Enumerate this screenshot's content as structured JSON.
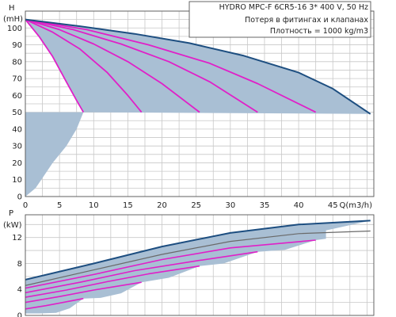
{
  "chart_data": [
    {
      "type": "line",
      "title": "HYDRO MPC-F 6CR5-16   3* 400 V, 50 Hz",
      "annotations": [
        "Потеря в фитингах и клапанах",
        "Плотность = 1000 kg/m3"
      ],
      "ylabel": "H",
      "yunit": "(mH)",
      "xlabel": "Q(m3/h)",
      "xlim": [
        0,
        51
      ],
      "ylim": [
        0,
        110
      ],
      "xticks": [
        0,
        5,
        10,
        15,
        20,
        25,
        30,
        35,
        40,
        45
      ],
      "yticks": [
        0,
        10,
        20,
        30,
        40,
        50,
        60,
        70,
        80,
        90,
        100
      ],
      "grid": true,
      "colors": {
        "envelope": "#1d4e80",
        "curves": "#e020c8",
        "region": "#a9bfd4"
      },
      "series": [
        {
          "x": [
            0,
            2,
            4,
            6,
            7.5,
            8.5
          ],
          "y": [
            105,
            95,
            83,
            68,
            57,
            50
          ]
        },
        {
          "x": [
            0,
            4,
            8,
            12,
            15,
            17
          ],
          "y": [
            105,
            97.5,
            87.5,
            73.5,
            60,
            50
          ]
        },
        {
          "x": [
            0,
            5,
            10,
            15,
            20,
            25.5
          ],
          "y": [
            105,
            99,
            90.5,
            80,
            67,
            50
          ]
        },
        {
          "x": [
            0,
            7,
            14,
            21,
            27,
            34
          ],
          "y": [
            105,
            99,
            90.5,
            80,
            68,
            50
          ]
        },
        {
          "x": [
            0,
            9,
            18,
            27,
            34,
            42.5
          ],
          "y": [
            105,
            99,
            90,
            79,
            67,
            50
          ]
        },
        {
          "x": [
            0,
            8,
            16,
            24,
            32,
            40,
            45,
            50.5
          ],
          "y": [
            105,
            101,
            96.5,
            91,
            83.5,
            73.5,
            64,
            49
          ]
        }
      ],
      "operating_region": {
        "upper": {
          "x": [
            0,
            8,
            16,
            24,
            32,
            40,
            45,
            50.5
          ],
          "y": [
            105,
            101,
            96.5,
            91,
            83.5,
            73.5,
            64,
            49
          ]
        },
        "min_speed": {
          "x": [
            0,
            2,
            4,
            6,
            7.5,
            8.5
          ],
          "y": [
            105,
            95,
            83,
            68,
            57,
            50
          ]
        },
        "lower_head": 50,
        "tail": {
          "x": [
            8.5,
            7.5,
            6,
            4,
            2.5,
            1.5,
            0.3
          ],
          "y": [
            50,
            40,
            30,
            20,
            11,
            5,
            1
          ]
        }
      }
    },
    {
      "type": "line",
      "ylabel": "P",
      "yunit": "(kW)",
      "xlim": [
        0,
        51
      ],
      "ylim": [
        0,
        15.5
      ],
      "yticks": [
        0,
        4,
        8,
        12
      ],
      "grid": true,
      "colors": {
        "envelope": "#1d4e80",
        "curves": "#e020c8",
        "region": "#a9bfd4",
        "band_edge": "#6a6a6a"
      },
      "series": [
        {
          "x": [
            0,
            3,
            6,
            8.5
          ],
          "y": [
            1,
            1.5,
            2.1,
            2.6
          ]
        },
        {
          "x": [
            0,
            5,
            10,
            17
          ],
          "y": [
            2,
            2.9,
            3.9,
            5.1
          ]
        },
        {
          "x": [
            0,
            6,
            12,
            18,
            25.5
          ],
          "y": [
            2.8,
            3.9,
            5.2,
            6.4,
            7.6
          ]
        },
        {
          "x": [
            0,
            8,
            16,
            25,
            34
          ],
          "y": [
            3.5,
            5.1,
            6.9,
            8.4,
            9.8
          ]
        },
        {
          "x": [
            0,
            10,
            20,
            30,
            42.5
          ],
          "y": [
            4.2,
            6.3,
            8.6,
            10.4,
            11.6
          ]
        },
        {
          "x": [
            0,
            10,
            20,
            30,
            40,
            50.5
          ],
          "y": [
            5.5,
            8,
            10.6,
            12.7,
            14,
            14.6
          ]
        }
      ],
      "band_lower_edge": {
        "x": [
          0,
          10,
          20,
          30,
          40,
          50.5
        ],
        "y": [
          4.6,
          7,
          9.4,
          11.4,
          12.6,
          13
        ]
      },
      "region_lower": {
        "x": [
          0,
          2,
          4.5,
          6.5,
          8.5,
          11,
          14,
          17,
          21,
          25.5,
          29,
          34,
          38,
          42.5,
          44,
          44
        ],
        "y": [
          0.3,
          0.3,
          0.4,
          1.1,
          2.6,
          2.7,
          3.4,
          5.1,
          5.8,
          7.6,
          8,
          9.8,
          10.1,
          11.6,
          11.8,
          13.1
        ]
      }
    }
  ]
}
